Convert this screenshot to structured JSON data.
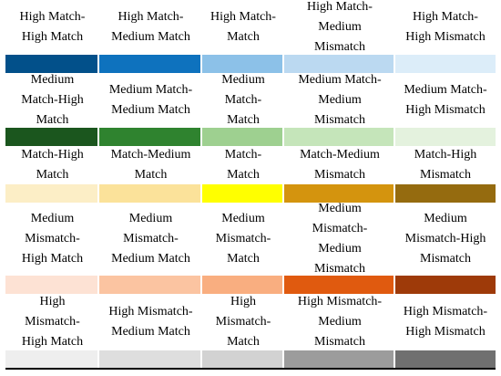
{
  "rows": [
    {
      "labels": [
        "High Match-\nHigh Match",
        "High Match-\nMedium Match",
        "High Match-\nMatch",
        "High Match-\nMedium\nMismatch",
        "High Match-\nHigh Mismatch"
      ],
      "colors": [
        "#02508A",
        "#0E72BE",
        "#8CC1E8",
        "#BBD9F1",
        "#DCEDF9"
      ]
    },
    {
      "labels": [
        "Medium\nMatch-High\nMatch",
        "Medium Match-\nMedium Match",
        "Medium\nMatch-\nMatch",
        "Medium Match-\nMedium\nMismatch",
        "Medium Match-\nHigh Mismatch"
      ],
      "colors": [
        "#1B561E",
        "#2F832F",
        "#9ED090",
        "#C5E5BA",
        "#E4F2DE"
      ]
    },
    {
      "labels": [
        "Match-High\nMatch",
        "Match-Medium\nMatch",
        "Match-\nMatch",
        "Match-Medium\nMismatch",
        "Match-High\nMismatch"
      ],
      "colors": [
        "#FCEEC6",
        "#FBE29A",
        "#FFFF00",
        "#D4940E",
        "#956B0F"
      ]
    },
    {
      "labels": [
        "Medium\nMismatch-\nHigh Match",
        "Medium\nMismatch-\nMedium Match",
        "Medium\nMismatch-\nMatch",
        "Medium\nMismatch-\nMedium\nMismatch",
        "Medium\nMismatch-High\nMismatch"
      ],
      "colors": [
        "#FDE2D4",
        "#FBC4A1",
        "#F9AE80",
        "#E05A0F",
        "#9E3A09"
      ]
    },
    {
      "labels": [
        "High\nMismatch-\nHigh Match",
        "High Mismatch-\nMedium Match",
        "High\nMismatch-\nMatch",
        "High Mismatch-\nMedium\nMismatch",
        "High Mismatch-\nHigh Mismatch"
      ],
      "colors": [
        "#EEEEEE",
        "#DEDEDE",
        "#D2D2D2",
        "#9C9C9C",
        "#707070"
      ]
    }
  ]
}
